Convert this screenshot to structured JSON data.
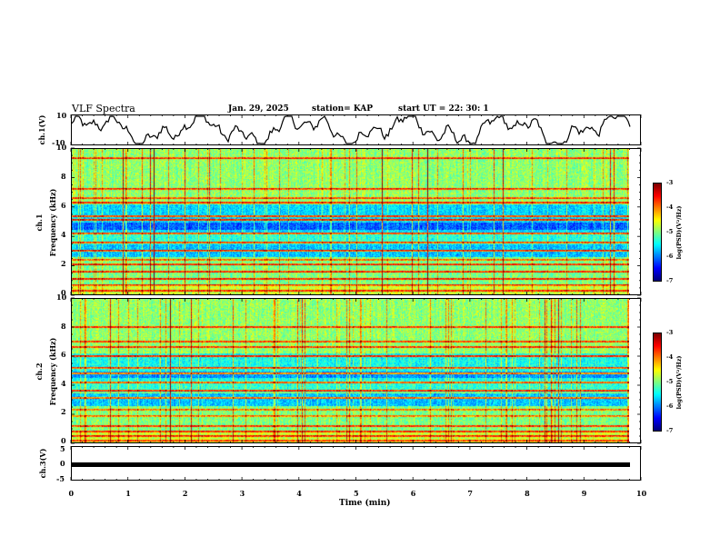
{
  "header": {
    "title": "VLF Spectra",
    "date": "Jan. 29, 2025",
    "station": "station= KAP",
    "start": "start  UT  =   22: 30: 1"
  },
  "chart_data": {
    "type": "heatmap",
    "xlabel": "Time (min)",
    "xlim": [
      0,
      10
    ],
    "x_ticks": [
      "0",
      "1",
      "2",
      "3",
      "4",
      "5",
      "6",
      "7",
      "8",
      "9",
      "10"
    ],
    "panels": [
      {
        "id": "ch1-waveform",
        "ylabel": "ch.1(V)",
        "ylim": [
          -10,
          10
        ],
        "y_ticks": [
          "10",
          "-10"
        ]
      },
      {
        "id": "ch1-spectrogram",
        "ylabel_top": "ch.1",
        "ylabel": "Frequency (kHz)",
        "ylim": [
          0,
          10
        ],
        "y_ticks": [
          "0",
          "2",
          "4",
          "6",
          "8",
          "10"
        ]
      },
      {
        "id": "ch2-spectrogram",
        "ylabel_top": "ch.2",
        "ylabel": "Frequency (kHz)",
        "ylim": [
          0,
          10
        ],
        "y_ticks": [
          "0",
          "2",
          "4",
          "6",
          "8",
          "10"
        ]
      },
      {
        "id": "ch3-waveform",
        "ylabel": "ch.3(V)",
        "ylim": [
          -5,
          5
        ],
        "y_ticks": [
          "5",
          "0",
          "-5"
        ]
      }
    ],
    "colorbar": {
      "label": "log(PSD)(V²/Hz)",
      "range": [
        -7,
        -3
      ],
      "ticks": [
        "-3",
        "-4",
        "-5",
        "-6",
        "-7"
      ]
    }
  }
}
